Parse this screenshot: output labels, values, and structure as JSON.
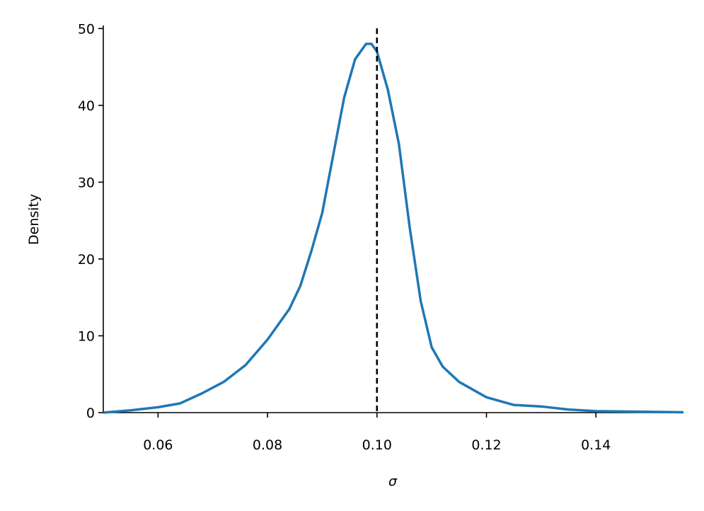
{
  "chart_data": {
    "type": "line",
    "xlabel": "σ",
    "ylabel": "Density",
    "x": [
      0.05,
      0.055,
      0.06,
      0.064,
      0.068,
      0.072,
      0.076,
      0.08,
      0.084,
      0.086,
      0.088,
      0.09,
      0.092,
      0.094,
      0.096,
      0.098,
      0.099,
      0.1,
      0.102,
      0.104,
      0.106,
      0.108,
      0.11,
      0.112,
      0.115,
      0.12,
      0.125,
      0.13,
      0.135,
      0.14,
      0.15,
      0.156
    ],
    "series": [
      {
        "color": "#1f77b4",
        "values": [
          0,
          0.3,
          0.7,
          1.2,
          2.5,
          4,
          6.2,
          9.5,
          13.5,
          16.5,
          21,
          26,
          33.5,
          41,
          46,
          48,
          48,
          47,
          42,
          35,
          24,
          14.5,
          8.5,
          6,
          4,
          2,
          1,
          0.8,
          0.4,
          0.2,
          0.1,
          0.05
        ]
      }
    ],
    "vline": 0.1,
    "vline_color": "#000000",
    "xlim": [
      0.05,
      0.156
    ],
    "xticks": [
      0.06,
      0.08,
      {
        "value": 0.1,
        "label": "0.10"
      },
      0.12,
      0.14
    ],
    "ylim": [
      0,
      50.4
    ],
    "yticks": [
      0,
      10,
      20,
      30,
      40,
      50
    ]
  }
}
